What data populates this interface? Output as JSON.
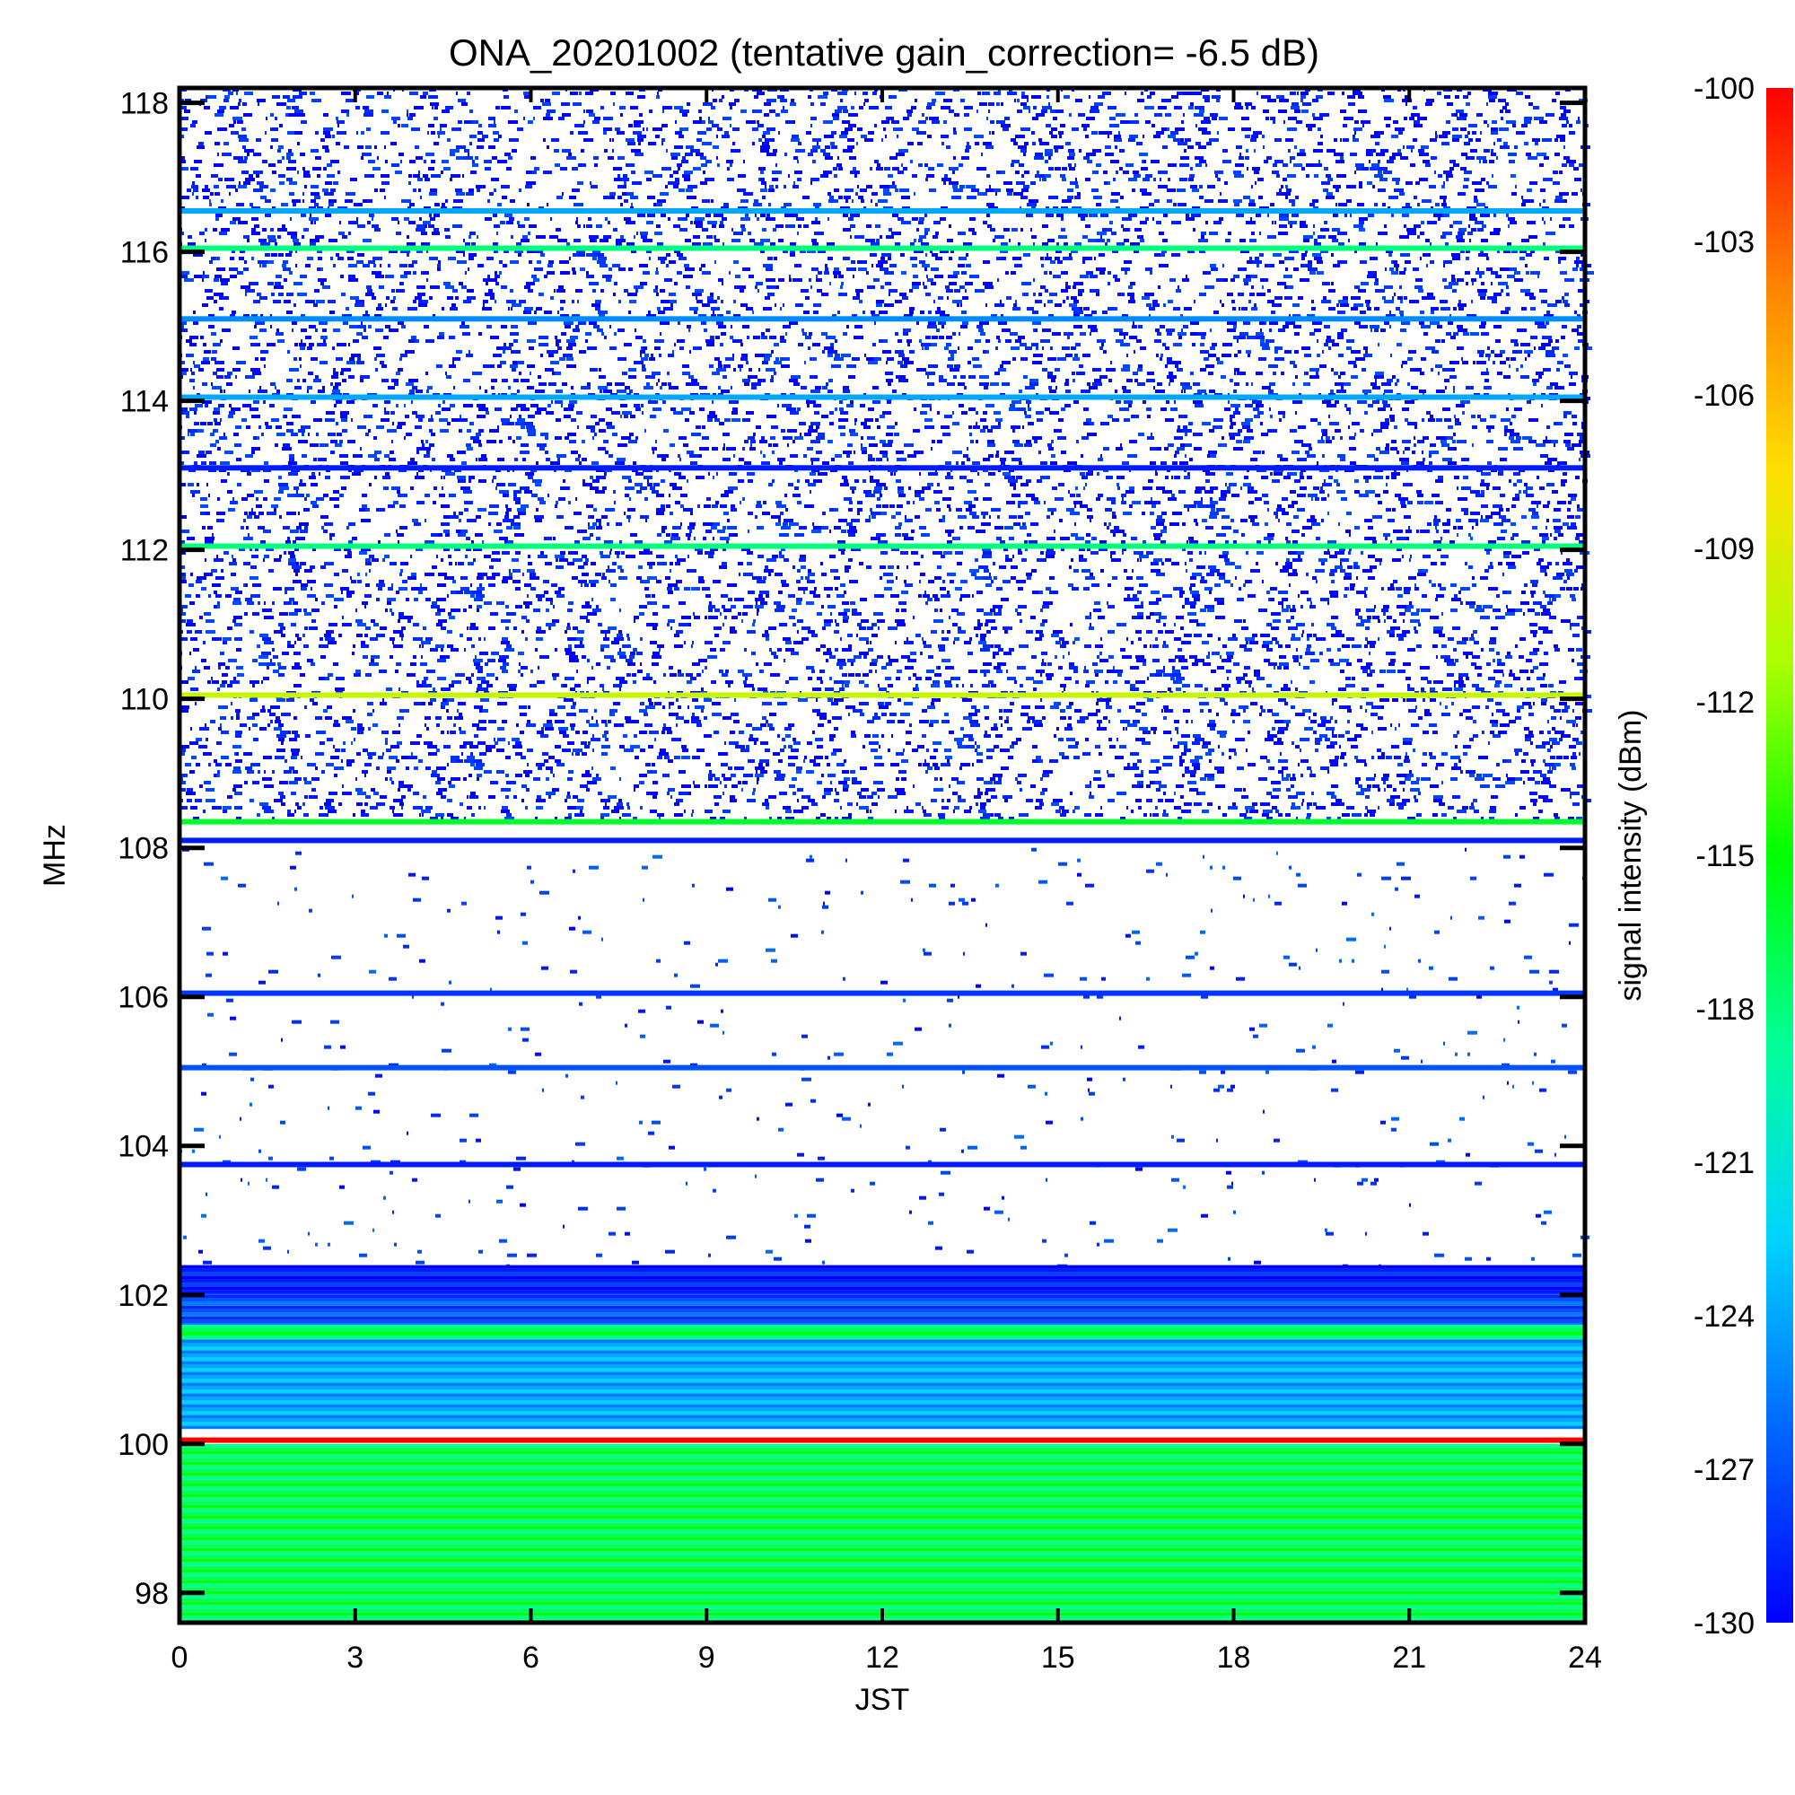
{
  "chart_data": {
    "type": "heatmap",
    "title": "ONA_20201002 (tentative gain_correction= -6.5 dB)",
    "xlabel": "JST",
    "ylabel": "MHz",
    "colorbar_label": "signal intensity (dBm)",
    "x_range": [
      0,
      24
    ],
    "y_range": [
      97.6,
      118.2
    ],
    "color_range": [
      -130,
      -100
    ],
    "x_ticks": [
      "0",
      "3",
      "6",
      "9",
      "12",
      "15",
      "18",
      "21",
      "24"
    ],
    "y_ticks": [
      "98",
      "100",
      "102",
      "104",
      "106",
      "108",
      "110",
      "112",
      "114",
      "116",
      "118"
    ],
    "colorbar_ticks": [
      "-100",
      "-103",
      "-106",
      "-109",
      "-112",
      "-115",
      "-118",
      "-121",
      "-124",
      "-127",
      "-130"
    ],
    "colormap": [
      "#0000ff",
      "#0066ff",
      "#00d4ff",
      "#00ff99",
      "#00ff00",
      "#aaff00",
      "#ffe000",
      "#ff8000",
      "#ff0000"
    ],
    "grid": false,
    "bands": [
      {
        "freq": 116.55,
        "intensity": -124,
        "width": 0.1
      },
      {
        "freq": 116.05,
        "intensity": -118,
        "width": 0.1
      },
      {
        "freq": 115.1,
        "intensity": -125,
        "width": 0.1
      },
      {
        "freq": 114.05,
        "intensity": -124,
        "width": 0.1
      },
      {
        "freq": 113.1,
        "intensity": -129,
        "width": 0.1
      },
      {
        "freq": 112.05,
        "intensity": -118,
        "width": 0.1
      },
      {
        "freq": 110.05,
        "intensity": -110,
        "width": 0.1
      },
      {
        "freq": 108.35,
        "intensity": -116,
        "width": 0.1
      },
      {
        "freq": 108.1,
        "intensity": -129,
        "width": 0.1
      },
      {
        "freq": 106.05,
        "intensity": -128,
        "width": 0.1
      },
      {
        "freq": 105.05,
        "intensity": -127,
        "width": 0.1
      },
      {
        "freq": 103.75,
        "intensity": -129,
        "width": 0.1
      },
      {
        "freq": 100.05,
        "intensity": -100,
        "width": 0.1
      }
    ],
    "regions": [
      {
        "from": 102.0,
        "to": 102.4,
        "intensity": -129
      },
      {
        "from": 101.6,
        "to": 102.0,
        "intensity": -127
      },
      {
        "from": 101.4,
        "to": 101.6,
        "intensity": -117
      },
      {
        "from": 100.2,
        "to": 101.4,
        "intensity": -124
      },
      {
        "from": 97.6,
        "to": 100.0,
        "intensity": -117
      }
    ],
    "noise_ranges": [
      {
        "from": 108.4,
        "to": 118.2,
        "intensity": -129,
        "density": 0.35
      },
      {
        "from": 102.4,
        "to": 108.0,
        "intensity": -128,
        "density": 0.03
      }
    ]
  }
}
